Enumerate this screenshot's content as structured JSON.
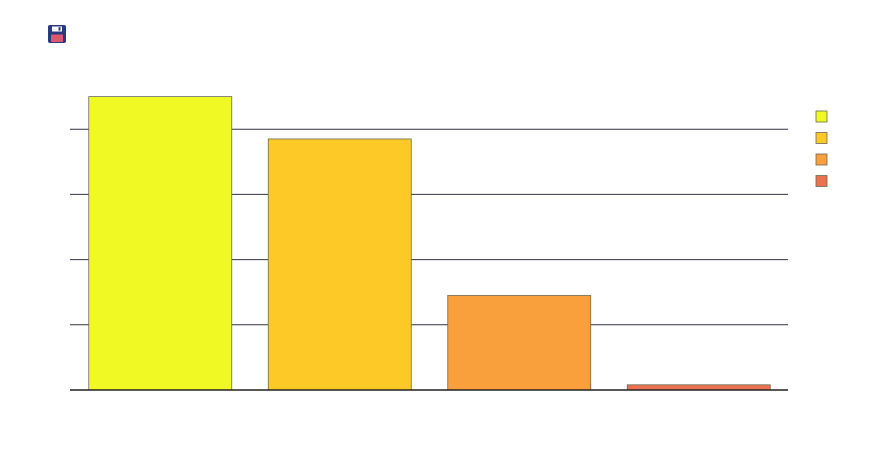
{
  "toolbar": {
    "save_icon": "floppy-disk-icon"
  },
  "colors": {
    "series": [
      "#f0f924",
      "#fdc926",
      "#f99f3c",
      "#ec7150"
    ],
    "bar_stroke": "#6b6b55",
    "gridline": "#333344",
    "baseline": "#222222",
    "save_icon_body": "#283a80",
    "save_icon_label": "#e0566e"
  },
  "chart_data": {
    "type": "bar",
    "categories": [
      "",
      "",
      "",
      ""
    ],
    "values": [
      4.5,
      3.85,
      1.45,
      0.08
    ],
    "ylim": [
      0,
      4.5
    ],
    "yticks": [
      0,
      1,
      2,
      3,
      4
    ],
    "grid": true,
    "legend": {
      "placement": "right",
      "entries": [
        "",
        "",
        "",
        ""
      ]
    }
  }
}
